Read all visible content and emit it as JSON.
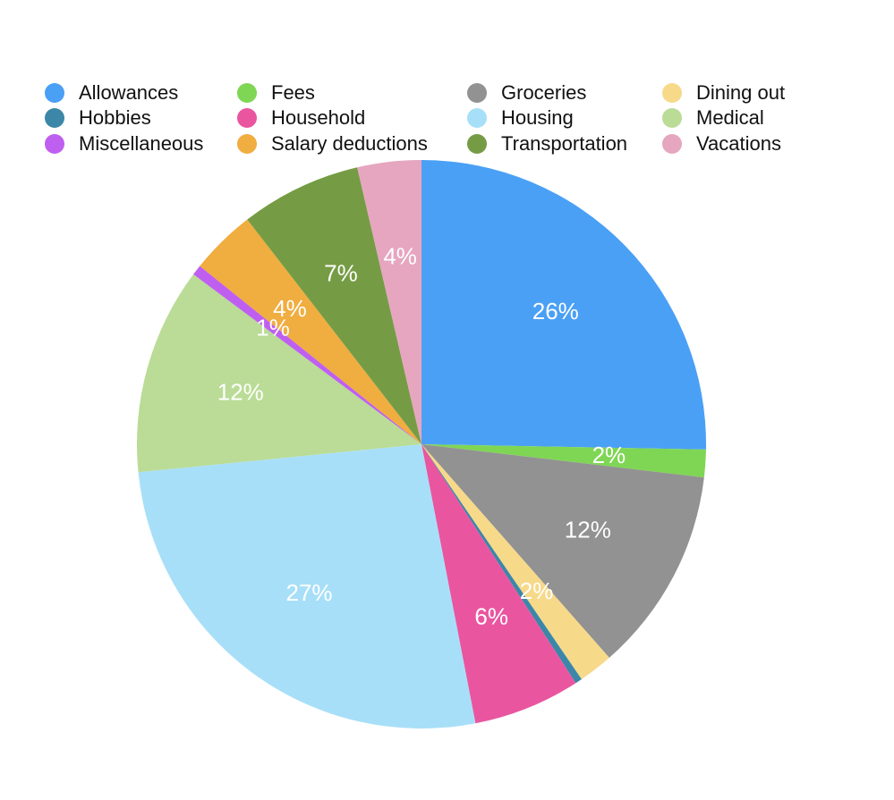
{
  "chart_data": {
    "type": "pie",
    "title": "",
    "legend_position": "top",
    "start_angle_deg": 0,
    "direction": "clockwise",
    "slices": [
      {
        "name": "Allowances",
        "value": 25.8,
        "label": "26%",
        "color": "#4aa0f5"
      },
      {
        "name": "Fees",
        "value": 1.6,
        "label": "2%",
        "color": "#7fd654"
      },
      {
        "name": "Groceries",
        "value": 11.9,
        "label": "12%",
        "color": "#929292"
      },
      {
        "name": "Dining out",
        "value": 2.0,
        "label": "2%",
        "color": "#f7d98a"
      },
      {
        "name": "Hobbies",
        "value": 0.4,
        "label": "",
        "color": "#3c87a8"
      },
      {
        "name": "Household",
        "value": 6.2,
        "label": "6%",
        "color": "#ea55a0"
      },
      {
        "name": "Housing",
        "value": 27.0,
        "label": "27%",
        "color": "#a8dff8"
      },
      {
        "name": "Medical",
        "value": 12.0,
        "label": "12%",
        "color": "#badc96"
      },
      {
        "name": "Miscellaneous",
        "value": 0.6,
        "label": "1%",
        "color": "#bf5ff0"
      },
      {
        "name": "Salary deductions",
        "value": 3.8,
        "label": "4%",
        "color": "#f0ad40"
      },
      {
        "name": "Transportation",
        "value": 7.0,
        "label": "7%",
        "color": "#759c44"
      },
      {
        "name": "Vacations",
        "value": 3.7,
        "label": "4%",
        "color": "#e6a6bf"
      }
    ]
  },
  "legend": {
    "items": [
      {
        "label": "Allowances",
        "color": "#4aa0f5",
        "icon": "circle"
      },
      {
        "label": "Fees",
        "color": "#7fd654",
        "icon": "circle"
      },
      {
        "label": "Groceries",
        "color": "#929292",
        "icon": "circle"
      },
      {
        "label": "Dining out",
        "color": "#f7d98a",
        "icon": "circle"
      },
      {
        "label": "Hobbies",
        "color": "#3c87a8",
        "icon": "circle"
      },
      {
        "label": "Household",
        "color": "#ea55a0",
        "icon": "circle"
      },
      {
        "label": "Housing",
        "color": "#a8dff8",
        "icon": "circle"
      },
      {
        "label": "Medical",
        "color": "#badc96",
        "icon": "circle"
      },
      {
        "label": "Miscellaneous",
        "color": "#bf5ff0",
        "icon": "circle"
      },
      {
        "label": "Salary deductions",
        "color": "#f0ad40",
        "icon": "circle"
      },
      {
        "label": "Transportation",
        "color": "#759c44",
        "icon": "circle"
      },
      {
        "label": "Vacations",
        "color": "#e6a6bf",
        "icon": "circle"
      }
    ]
  }
}
